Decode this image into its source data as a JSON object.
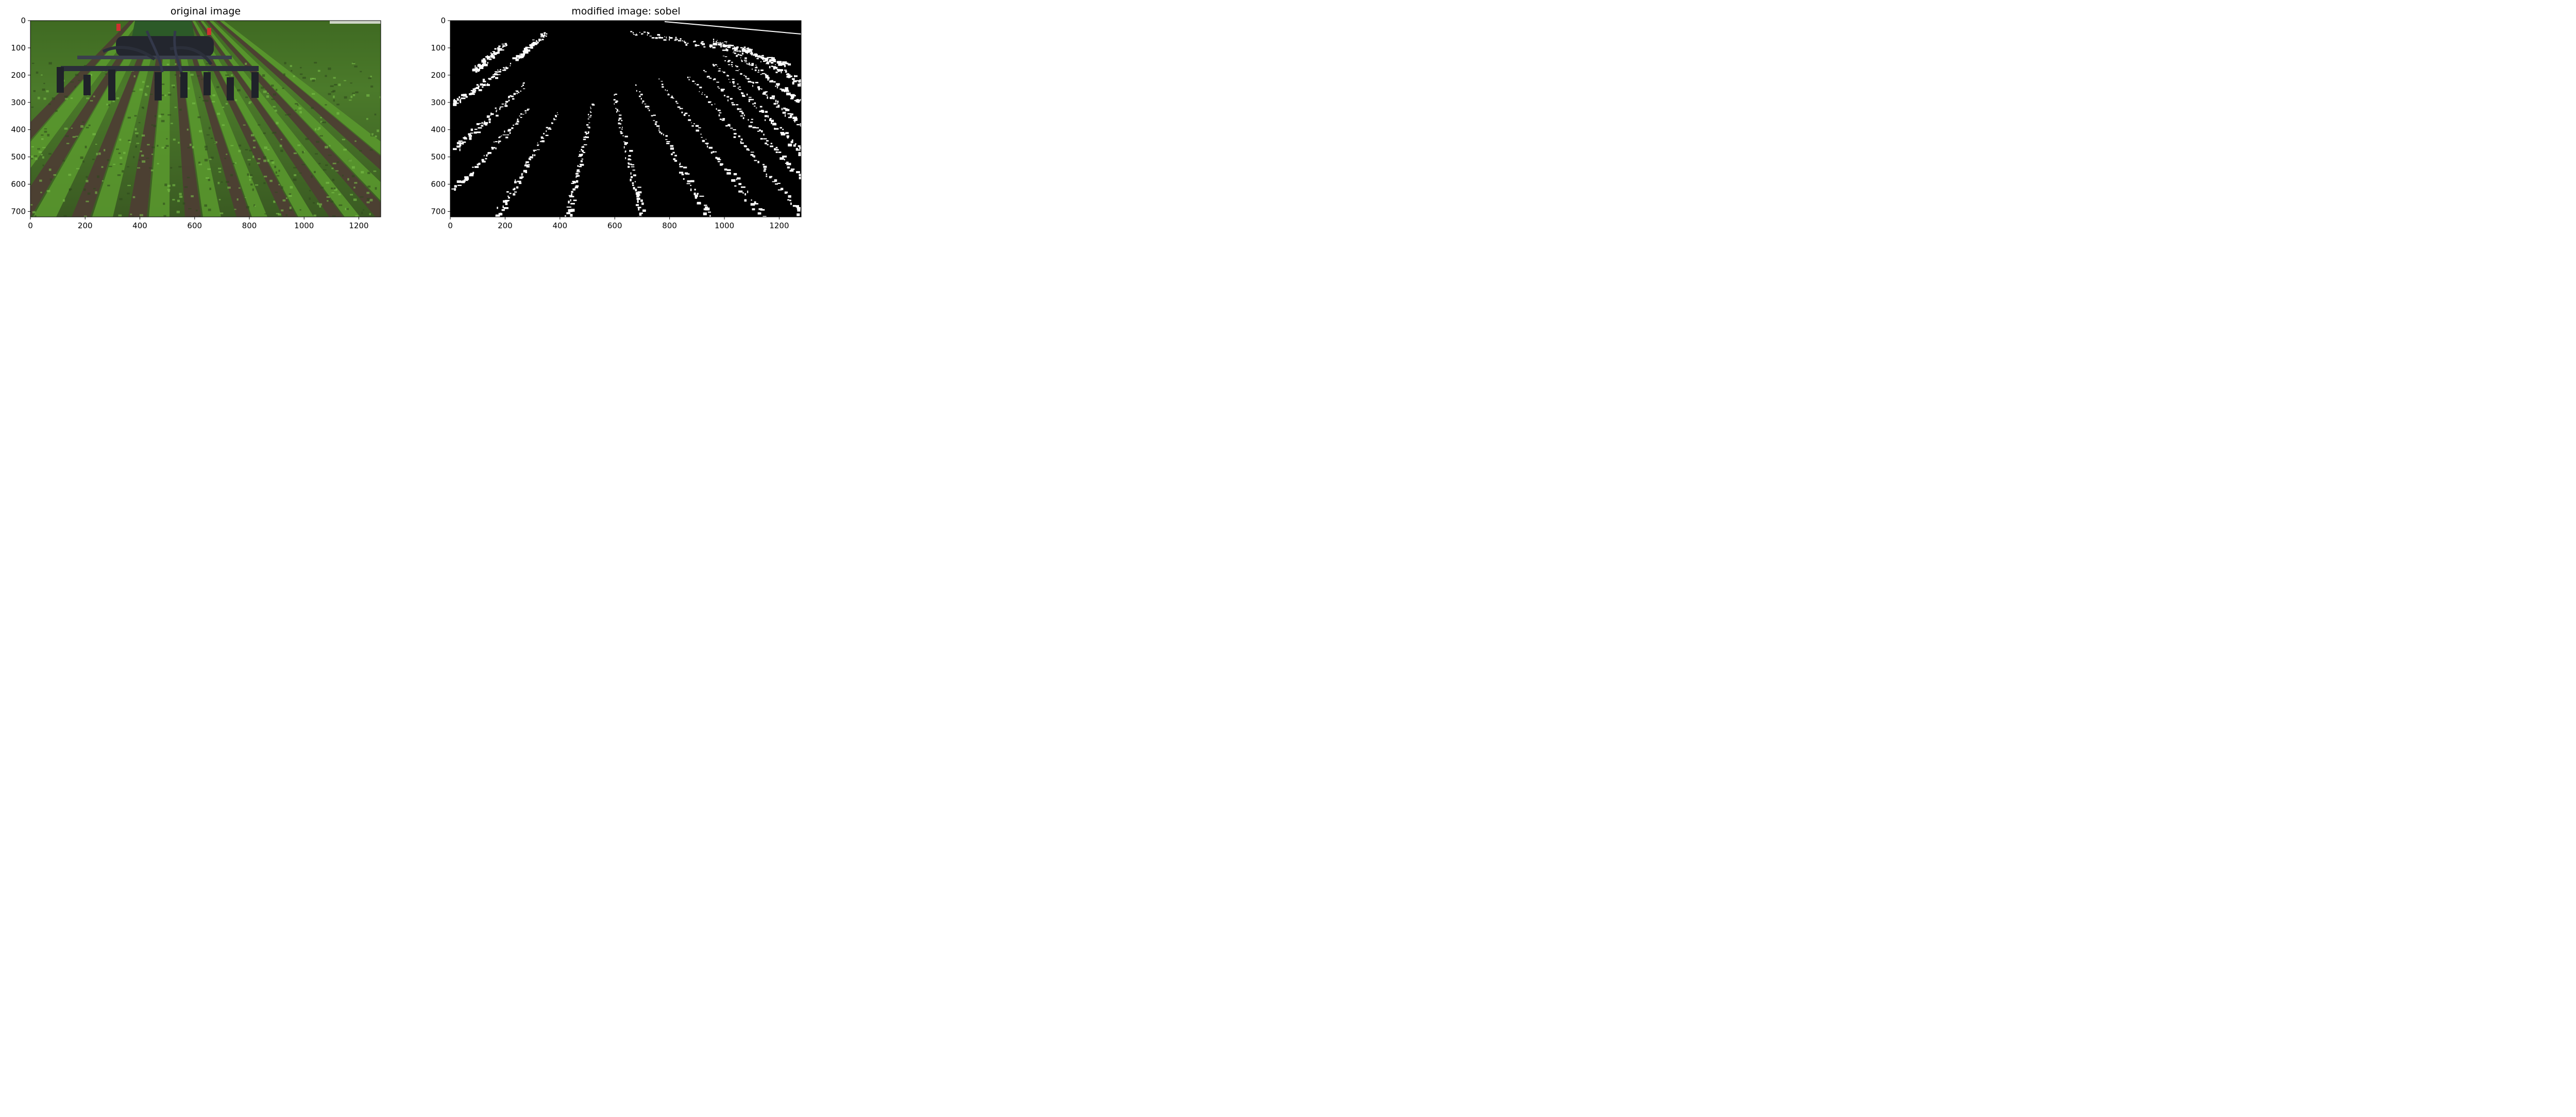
{
  "panels": [
    {
      "title": "original image",
      "x_ticks": [
        "0",
        "200",
        "400",
        "600",
        "800",
        "1000",
        "1200"
      ],
      "y_ticks": [
        "0",
        "100",
        "200",
        "300",
        "400",
        "500",
        "600",
        "700"
      ],
      "x_range": [
        0,
        1280
      ],
      "y_range": [
        0,
        720
      ],
      "image_kind": "photo of tractor with cultivator in soybean field rows"
    },
    {
      "title": "modified image: sobel",
      "x_ticks": [
        "0",
        "200",
        "400",
        "600",
        "800",
        "1000",
        "1200"
      ],
      "y_ticks": [
        "0",
        "100",
        "200",
        "300",
        "400",
        "500",
        "600",
        "700"
      ],
      "x_range": [
        0,
        1280
      ],
      "y_range": [
        0,
        720
      ],
      "image_kind": "binary sobel edge map, white edges on black"
    }
  ],
  "colors": {
    "background": "#ffffff",
    "text": "#000000",
    "edge": "#ffffff",
    "edge_background": "#000000",
    "foliage": "#4f8a2a",
    "soil": "#5a4a3c",
    "machinery": "#2b2f3a",
    "tank": "#2f5a2a",
    "reflector": "#d03030"
  }
}
